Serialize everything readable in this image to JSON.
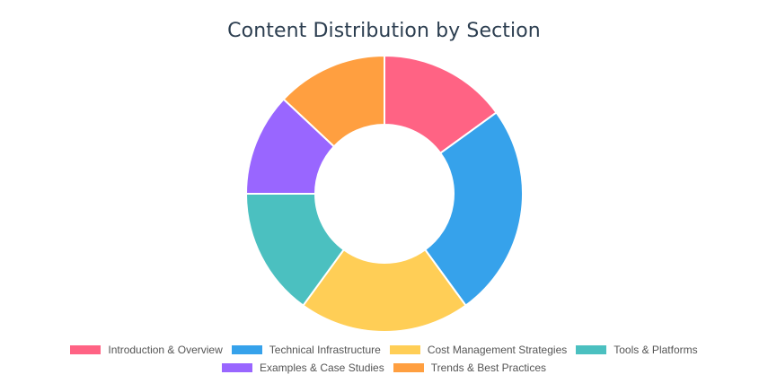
{
  "chart_data": {
    "type": "pie",
    "title": "Content Distribution by Section",
    "categories": [
      "Introduction & Overview",
      "Technical Infrastructure",
      "Cost Management Strategies",
      "Tools & Platforms",
      "Examples & Case Studies",
      "Trends & Best Practices"
    ],
    "values": [
      15,
      25,
      20,
      15,
      12,
      13
    ],
    "colors": [
      "#ff6384",
      "#36a2eb",
      "#ffce56",
      "#4bc0c0",
      "#9966ff",
      "#ff9f40"
    ],
    "legend_position": "bottom",
    "donut": true
  }
}
